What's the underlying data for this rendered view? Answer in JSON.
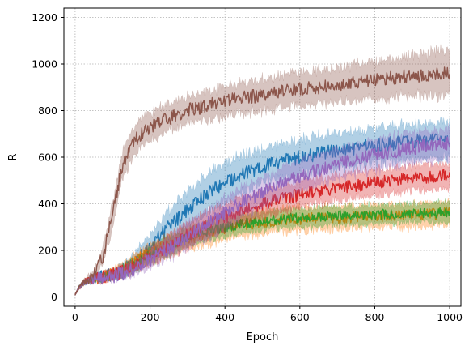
{
  "chart_data": {
    "type": "line",
    "title": "",
    "xlabel": "Epoch",
    "ylabel": "R",
    "xlim": [
      -30,
      1030
    ],
    "ylim": [
      -40,
      1240
    ],
    "xticks": [
      0,
      200,
      400,
      600,
      800,
      1000
    ],
    "yticks": [
      0,
      200,
      400,
      600,
      800,
      1000,
      1200
    ],
    "grid": true,
    "legend": "none",
    "series": [
      {
        "color": "#1f77b4",
        "x": [
          0,
          10,
          25,
          50,
          75,
          100,
          125,
          150,
          175,
          200,
          250,
          300,
          350,
          400,
          450,
          500,
          550,
          600,
          650,
          700,
          750,
          800,
          850,
          900,
          950,
          1000
        ],
        "y": [
          10,
          40,
          65,
          78,
          85,
          95,
          110,
          140,
          175,
          215,
          300,
          375,
          440,
          490,
          530,
          560,
          580,
          600,
          615,
          630,
          640,
          650,
          660,
          665,
          670,
          675
        ],
        "band": [
          4,
          8,
          10,
          12,
          15,
          20,
          25,
          35,
          45,
          55,
          70,
          80,
          85,
          85,
          80,
          75,
          75,
          75,
          75,
          75,
          75,
          75,
          75,
          75,
          75,
          75
        ],
        "noise": 30
      },
      {
        "color": "#ff7f0e",
        "x": [
          0,
          10,
          25,
          50,
          75,
          100,
          125,
          150,
          175,
          200,
          250,
          300,
          350,
          400,
          450,
          500,
          550,
          600,
          650,
          700,
          750,
          800,
          850,
          900,
          950,
          1000
        ],
        "y": [
          10,
          40,
          65,
          78,
          85,
          100,
          120,
          145,
          170,
          190,
          220,
          250,
          275,
          295,
          310,
          320,
          330,
          335,
          340,
          340,
          345,
          345,
          350,
          350,
          355,
          360
        ],
        "band": [
          4,
          8,
          10,
          12,
          15,
          20,
          25,
          30,
          35,
          40,
          45,
          45,
          50,
          50,
          50,
          50,
          50,
          50,
          50,
          50,
          50,
          50,
          50,
          50,
          50,
          50
        ],
        "noise": 25
      },
      {
        "color": "#2ca02c",
        "x": [
          0,
          10,
          25,
          50,
          75,
          100,
          125,
          150,
          175,
          200,
          250,
          300,
          350,
          400,
          450,
          500,
          550,
          600,
          650,
          700,
          750,
          800,
          850,
          900,
          950,
          1000
        ],
        "y": [
          10,
          40,
          65,
          78,
          85,
          95,
          110,
          130,
          155,
          180,
          220,
          255,
          280,
          300,
          315,
          325,
          335,
          340,
          345,
          350,
          350,
          355,
          355,
          360,
          360,
          365
        ],
        "band": [
          4,
          8,
          10,
          12,
          15,
          18,
          22,
          26,
          30,
          35,
          40,
          40,
          40,
          40,
          40,
          40,
          40,
          40,
          40,
          40,
          40,
          40,
          40,
          40,
          40,
          40
        ],
        "noise": 22
      },
      {
        "color": "#d62728",
        "x": [
          0,
          10,
          25,
          50,
          75,
          100,
          125,
          150,
          175,
          200,
          250,
          300,
          350,
          400,
          450,
          500,
          550,
          600,
          650,
          700,
          750,
          800,
          850,
          900,
          950,
          1000
        ],
        "y": [
          10,
          40,
          65,
          78,
          85,
          95,
          108,
          125,
          145,
          170,
          220,
          265,
          310,
          345,
          375,
          400,
          420,
          440,
          455,
          470,
          480,
          490,
          500,
          510,
          515,
          520
        ],
        "band": [
          4,
          8,
          10,
          12,
          15,
          18,
          22,
          26,
          30,
          35,
          45,
          50,
          55,
          55,
          55,
          55,
          55,
          55,
          55,
          55,
          55,
          55,
          55,
          55,
          55,
          55
        ],
        "noise": 28
      },
      {
        "color": "#9467bd",
        "x": [
          0,
          10,
          25,
          50,
          75,
          100,
          125,
          150,
          175,
          200,
          250,
          300,
          350,
          400,
          450,
          500,
          550,
          600,
          650,
          700,
          750,
          800,
          850,
          900,
          950,
          1000
        ],
        "y": [
          10,
          40,
          65,
          78,
          85,
          90,
          100,
          115,
          135,
          160,
          210,
          260,
          310,
          360,
          410,
          450,
          490,
          520,
          545,
          570,
          590,
          610,
          625,
          640,
          650,
          660
        ],
        "band": [
          4,
          8,
          10,
          12,
          15,
          18,
          22,
          26,
          30,
          35,
          45,
          55,
          60,
          65,
          65,
          65,
          65,
          65,
          65,
          65,
          65,
          65,
          65,
          65,
          65,
          65
        ],
        "noise": 30
      },
      {
        "color": "#8c564b",
        "x": [
          0,
          10,
          25,
          50,
          75,
          100,
          125,
          150,
          175,
          200,
          250,
          300,
          350,
          400,
          450,
          500,
          550,
          600,
          650,
          700,
          750,
          800,
          850,
          900,
          950,
          1000
        ],
        "y": [
          10,
          40,
          65,
          95,
          180,
          350,
          560,
          650,
          700,
          730,
          770,
          800,
          820,
          840,
          855,
          865,
          880,
          890,
          900,
          910,
          920,
          930,
          940,
          950,
          955,
          965
        ],
        "band": [
          4,
          8,
          12,
          20,
          35,
          55,
          60,
          60,
          60,
          60,
          60,
          60,
          60,
          65,
          65,
          70,
          70,
          70,
          75,
          75,
          80,
          80,
          85,
          85,
          90,
          95
        ],
        "noise": 30
      }
    ]
  }
}
